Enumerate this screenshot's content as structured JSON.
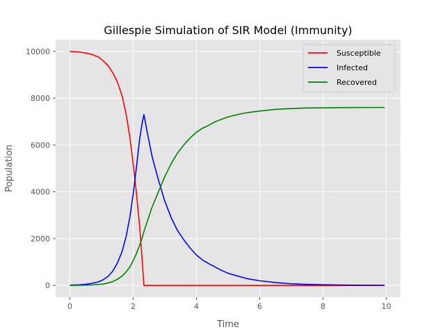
{
  "chart_data": {
    "type": "line",
    "title": "Gillespie Simulation of SIR Model (Immunity)",
    "xlabel": "Time",
    "ylabel": "Population",
    "xlim": [
      -0.45,
      10.45
    ],
    "ylim": [
      -500,
      10500
    ],
    "xticks": [
      0,
      2,
      4,
      6,
      8,
      10
    ],
    "yticks": [
      0,
      2000,
      4000,
      6000,
      8000,
      10000
    ],
    "grid": true,
    "legend_position": "top-right",
    "series": [
      {
        "name": "Susceptible",
        "color": "#ff0000",
        "x": [
          0,
          0.3,
          0.5,
          0.7,
          0.9,
          1.05,
          1.2,
          1.35,
          1.5,
          1.65,
          1.78,
          1.9,
          2.0,
          2.1,
          2.2,
          2.28,
          2.34,
          2.6,
          3,
          4,
          5,
          6,
          7,
          8,
          9,
          9.95
        ],
        "y": [
          10000,
          9970,
          9930,
          9870,
          9760,
          9600,
          9400,
          9100,
          8700,
          8100,
          7300,
          6300,
          5200,
          4000,
          2600,
          1200,
          0,
          0,
          0,
          0,
          0,
          0,
          0,
          0,
          0,
          0
        ]
      },
      {
        "name": "Infected",
        "color": "#0000ff",
        "x": [
          0,
          0.3,
          0.5,
          0.7,
          0.9,
          1.05,
          1.2,
          1.35,
          1.5,
          1.65,
          1.78,
          1.9,
          2.0,
          2.1,
          2.2,
          2.28,
          2.34,
          2.45,
          2.6,
          2.8,
          3.0,
          3.2,
          3.4,
          3.6,
          3.8,
          4.0,
          4.2,
          4.4,
          4.6,
          4.8,
          5.0,
          5.3,
          5.6,
          6.0,
          6.5,
          7.0,
          7.5,
          8.0,
          8.5,
          9.0,
          9.5,
          9.95
        ],
        "y": [
          10,
          25,
          50,
          90,
          150,
          240,
          380,
          600,
          950,
          1450,
          2100,
          2950,
          3900,
          5000,
          6200,
          6900,
          7300,
          6500,
          5500,
          4500,
          3600,
          2900,
          2350,
          1950,
          1600,
          1300,
          1080,
          920,
          780,
          640,
          520,
          400,
          290,
          200,
          120,
          70,
          45,
          30,
          20,
          12,
          8,
          5
        ]
      },
      {
        "name": "Recovered",
        "color": "#008000",
        "x": [
          0,
          0.3,
          0.5,
          0.7,
          0.9,
          1.05,
          1.2,
          1.35,
          1.5,
          1.65,
          1.78,
          1.9,
          2.0,
          2.1,
          2.2,
          2.28,
          2.34,
          2.45,
          2.6,
          2.8,
          3.0,
          3.2,
          3.4,
          3.6,
          3.8,
          4.0,
          4.2,
          4.4,
          4.6,
          4.8,
          5.0,
          5.3,
          5.6,
          6.0,
          6.5,
          7.0,
          7.5,
          8.0,
          8.5,
          9.0,
          9.5,
          9.95
        ],
        "y": [
          0,
          5,
          10,
          20,
          40,
          60,
          100,
          160,
          260,
          400,
          580,
          800,
          1050,
          1350,
          1700,
          2000,
          2300,
          2750,
          3350,
          4000,
          4650,
          5200,
          5650,
          6000,
          6300,
          6550,
          6720,
          6850,
          7000,
          7100,
          7200,
          7300,
          7380,
          7450,
          7520,
          7560,
          7580,
          7590,
          7595,
          7598,
          7600,
          7600
        ]
      }
    ]
  }
}
